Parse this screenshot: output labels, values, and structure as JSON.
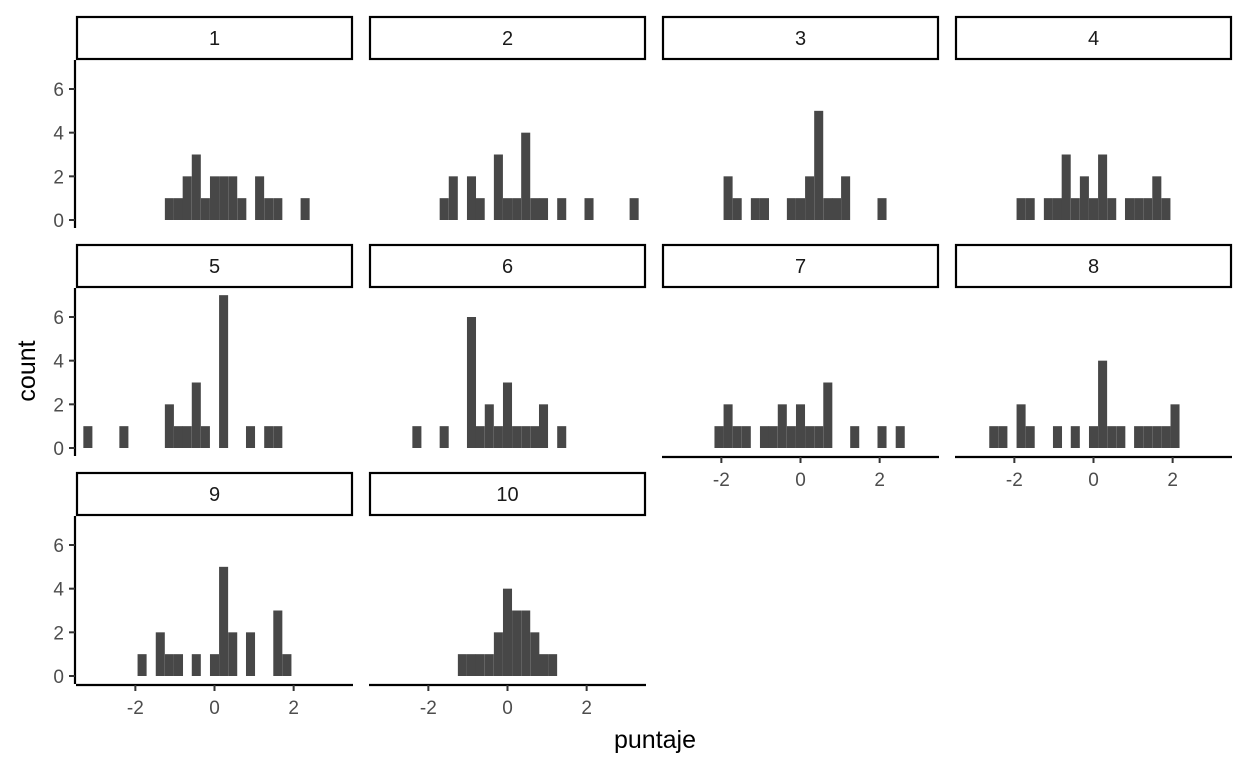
{
  "chart_data": {
    "type": "bar",
    "subtype": "faceted-histogram",
    "xlabel": "puntaje",
    "ylabel": "count",
    "xlim": [
      -3.5,
      3.5
    ],
    "ylim": [
      0,
      7
    ],
    "x_ticks": [
      -2,
      0,
      2
    ],
    "y_ticks": [
      0,
      2,
      4,
      6
    ],
    "bin_width": 0.2286,
    "grid": false,
    "facet_layout": {
      "columns": 4,
      "rows": 3
    },
    "facets": [
      {
        "label": "1",
        "bins": [
          {
            "x": -1.14,
            "count": 1
          },
          {
            "x": -0.91,
            "count": 1
          },
          {
            "x": -0.69,
            "count": 2
          },
          {
            "x": -0.46,
            "count": 3
          },
          {
            "x": -0.23,
            "count": 1
          },
          {
            "x": 0.0,
            "count": 2
          },
          {
            "x": 0.23,
            "count": 2
          },
          {
            "x": 0.46,
            "count": 2
          },
          {
            "x": 0.69,
            "count": 1
          },
          {
            "x": 1.14,
            "count": 2
          },
          {
            "x": 1.37,
            "count": 1
          },
          {
            "x": 1.6,
            "count": 1
          },
          {
            "x": 2.29,
            "count": 1
          }
        ]
      },
      {
        "label": "2",
        "bins": [
          {
            "x": -1.6,
            "count": 1
          },
          {
            "x": -1.37,
            "count": 2
          },
          {
            "x": -0.91,
            "count": 2
          },
          {
            "x": -0.69,
            "count": 1
          },
          {
            "x": -0.23,
            "count": 3
          },
          {
            "x": 0.0,
            "count": 1
          },
          {
            "x": 0.23,
            "count": 1
          },
          {
            "x": 0.46,
            "count": 4
          },
          {
            "x": 0.69,
            "count": 1
          },
          {
            "x": 0.91,
            "count": 1
          },
          {
            "x": 1.37,
            "count": 1
          },
          {
            "x": 2.06,
            "count": 1
          },
          {
            "x": 3.2,
            "count": 1
          }
        ]
      },
      {
        "label": "3",
        "bins": [
          {
            "x": -1.83,
            "count": 2
          },
          {
            "x": -1.6,
            "count": 1
          },
          {
            "x": -1.14,
            "count": 1
          },
          {
            "x": -0.91,
            "count": 1
          },
          {
            "x": -0.23,
            "count": 1
          },
          {
            "x": 0.0,
            "count": 1
          },
          {
            "x": 0.23,
            "count": 2
          },
          {
            "x": 0.46,
            "count": 5
          },
          {
            "x": 0.69,
            "count": 1
          },
          {
            "x": 0.91,
            "count": 1
          },
          {
            "x": 1.14,
            "count": 2
          },
          {
            "x": 2.06,
            "count": 1
          }
        ]
      },
      {
        "label": "4",
        "bins": [
          {
            "x": -1.83,
            "count": 1
          },
          {
            "x": -1.6,
            "count": 1
          },
          {
            "x": -1.14,
            "count": 1
          },
          {
            "x": -0.91,
            "count": 1
          },
          {
            "x": -0.69,
            "count": 3
          },
          {
            "x": -0.46,
            "count": 1
          },
          {
            "x": -0.23,
            "count": 2
          },
          {
            "x": 0.0,
            "count": 1
          },
          {
            "x": 0.23,
            "count": 3
          },
          {
            "x": 0.46,
            "count": 1
          },
          {
            "x": 0.91,
            "count": 1
          },
          {
            "x": 1.14,
            "count": 1
          },
          {
            "x": 1.37,
            "count": 1
          },
          {
            "x": 1.6,
            "count": 2
          },
          {
            "x": 1.83,
            "count": 1
          }
        ]
      },
      {
        "label": "5",
        "bins": [
          {
            "x": -3.2,
            "count": 1
          },
          {
            "x": -2.29,
            "count": 1
          },
          {
            "x": -1.14,
            "count": 2
          },
          {
            "x": -0.91,
            "count": 1
          },
          {
            "x": -0.69,
            "count": 1
          },
          {
            "x": -0.46,
            "count": 3
          },
          {
            "x": -0.23,
            "count": 1
          },
          {
            "x": 0.23,
            "count": 7
          },
          {
            "x": 0.91,
            "count": 1
          },
          {
            "x": 1.37,
            "count": 1
          },
          {
            "x": 1.6,
            "count": 1
          }
        ]
      },
      {
        "label": "6",
        "bins": [
          {
            "x": -2.29,
            "count": 1
          },
          {
            "x": -1.6,
            "count": 1
          },
          {
            "x": -0.91,
            "count": 6
          },
          {
            "x": -0.69,
            "count": 1
          },
          {
            "x": -0.46,
            "count": 2
          },
          {
            "x": -0.23,
            "count": 1
          },
          {
            "x": 0.0,
            "count": 3
          },
          {
            "x": 0.23,
            "count": 1
          },
          {
            "x": 0.46,
            "count": 1
          },
          {
            "x": 0.69,
            "count": 1
          },
          {
            "x": 0.91,
            "count": 2
          },
          {
            "x": 1.37,
            "count": 1
          }
        ]
      },
      {
        "label": "7",
        "bins": [
          {
            "x": -2.06,
            "count": 1
          },
          {
            "x": -1.83,
            "count": 2
          },
          {
            "x": -1.6,
            "count": 1
          },
          {
            "x": -1.37,
            "count": 1
          },
          {
            "x": -0.91,
            "count": 1
          },
          {
            "x": -0.69,
            "count": 1
          },
          {
            "x": -0.46,
            "count": 2
          },
          {
            "x": -0.23,
            "count": 1
          },
          {
            "x": 0.0,
            "count": 2
          },
          {
            "x": 0.23,
            "count": 1
          },
          {
            "x": 0.46,
            "count": 1
          },
          {
            "x": 0.69,
            "count": 3
          },
          {
            "x": 1.37,
            "count": 1
          },
          {
            "x": 2.06,
            "count": 1
          },
          {
            "x": 2.52,
            "count": 1
          }
        ]
      },
      {
        "label": "8",
        "bins": [
          {
            "x": -2.52,
            "count": 1
          },
          {
            "x": -2.29,
            "count": 1
          },
          {
            "x": -1.83,
            "count": 2
          },
          {
            "x": -1.6,
            "count": 1
          },
          {
            "x": -0.91,
            "count": 1
          },
          {
            "x": -0.46,
            "count": 1
          },
          {
            "x": 0.0,
            "count": 1
          },
          {
            "x": 0.23,
            "count": 4
          },
          {
            "x": 0.46,
            "count": 1
          },
          {
            "x": 0.69,
            "count": 1
          },
          {
            "x": 1.14,
            "count": 1
          },
          {
            "x": 1.37,
            "count": 1
          },
          {
            "x": 1.6,
            "count": 1
          },
          {
            "x": 1.83,
            "count": 1
          },
          {
            "x": 2.06,
            "count": 2
          }
        ]
      },
      {
        "label": "9",
        "bins": [
          {
            "x": -1.83,
            "count": 1
          },
          {
            "x": -1.37,
            "count": 2
          },
          {
            "x": -1.14,
            "count": 1
          },
          {
            "x": -0.91,
            "count": 1
          },
          {
            "x": -0.46,
            "count": 1
          },
          {
            "x": 0.0,
            "count": 1
          },
          {
            "x": 0.23,
            "count": 5
          },
          {
            "x": 0.46,
            "count": 2
          },
          {
            "x": 0.91,
            "count": 2
          },
          {
            "x": 1.6,
            "count": 3
          },
          {
            "x": 1.83,
            "count": 1
          }
        ]
      },
      {
        "label": "10",
        "bins": [
          {
            "x": -1.14,
            "count": 1
          },
          {
            "x": -0.91,
            "count": 1
          },
          {
            "x": -0.69,
            "count": 1
          },
          {
            "x": -0.46,
            "count": 1
          },
          {
            "x": -0.23,
            "count": 2
          },
          {
            "x": 0.0,
            "count": 4
          },
          {
            "x": 0.23,
            "count": 3
          },
          {
            "x": 0.46,
            "count": 3
          },
          {
            "x": 0.69,
            "count": 2
          },
          {
            "x": 0.91,
            "count": 1
          },
          {
            "x": 1.14,
            "count": 1
          }
        ]
      }
    ]
  }
}
